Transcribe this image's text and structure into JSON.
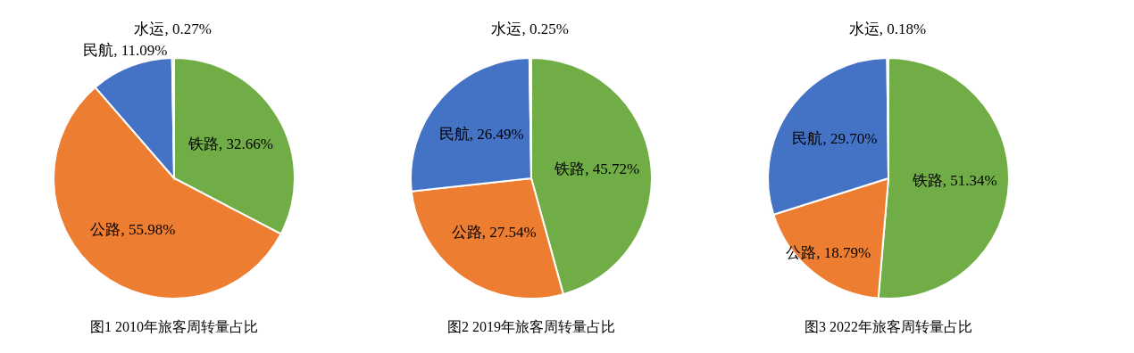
{
  "chart_data": [
    {
      "type": "pie",
      "title": "图1 2010年旅客周转量占比",
      "categories": [
        "铁路",
        "公路",
        "民航",
        "水运"
      ],
      "values": [
        32.66,
        55.98,
        11.09,
        0.27
      ],
      "colors": [
        "#70ad47",
        "#ed7d31",
        "#4472c4",
        "#a5a5a5"
      ],
      "value_labels": [
        "32.66%",
        "55.98%",
        "11.09%",
        "0.27%"
      ],
      "legend": false
    },
    {
      "type": "pie",
      "title": "图2 2019年旅客周转量占比",
      "categories": [
        "铁路",
        "公路",
        "民航",
        "水运"
      ],
      "values": [
        45.72,
        27.54,
        26.49,
        0.25
      ],
      "colors": [
        "#70ad47",
        "#ed7d31",
        "#4472c4",
        "#a5a5a5"
      ],
      "value_labels": [
        "45.72%",
        "27.54%",
        "26.49%",
        "0.25%"
      ],
      "legend": false
    },
    {
      "type": "pie",
      "title": "图3 2022年旅客周转量占比",
      "categories": [
        "铁路",
        "公路",
        "民航",
        "水运"
      ],
      "values": [
        51.34,
        18.79,
        29.7,
        0.18
      ],
      "colors": [
        "#70ad47",
        "#ed7d31",
        "#4472c4",
        "#a5a5a5"
      ],
      "value_labels": [
        "51.34%",
        "18.79%",
        "29.70%",
        "0.18%"
      ],
      "legend": false
    }
  ]
}
